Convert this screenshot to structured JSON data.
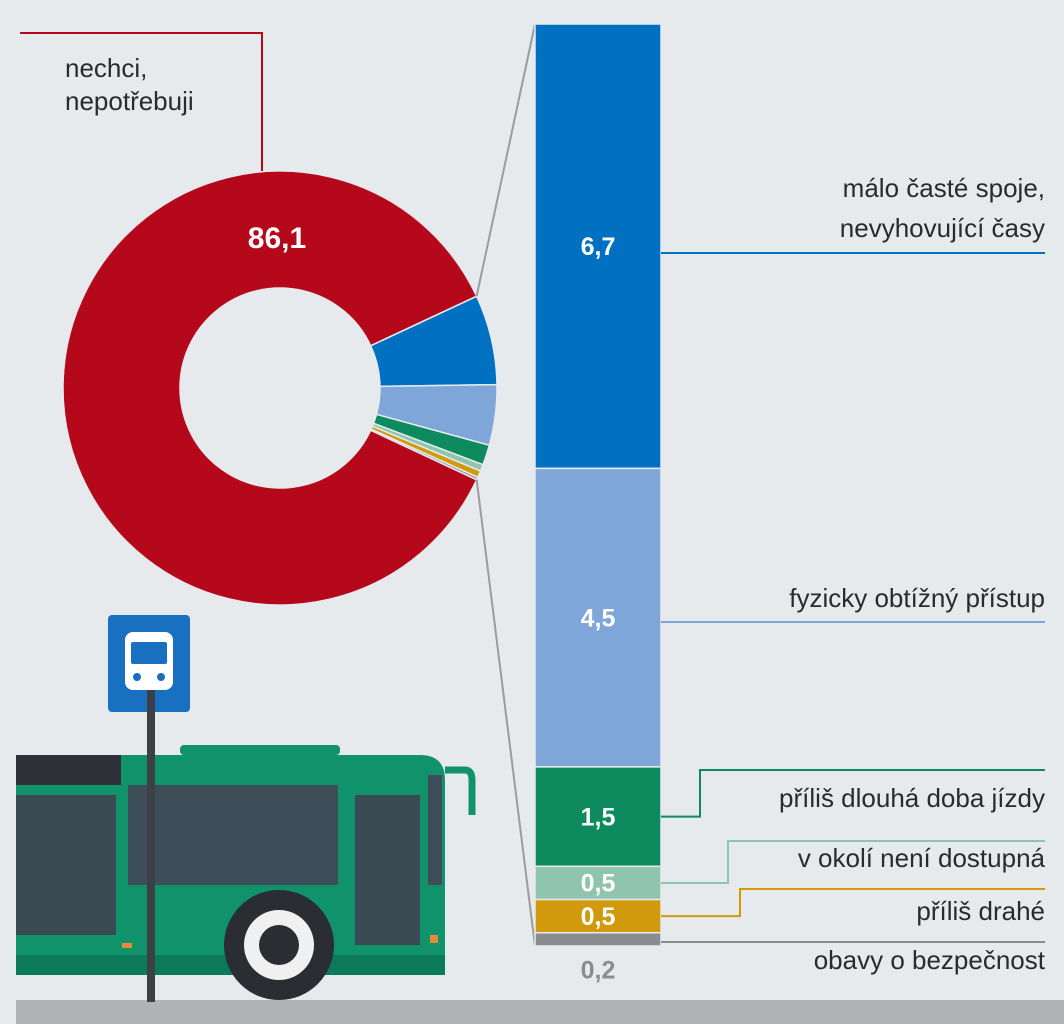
{
  "chart_data": {
    "type": "donut",
    "categories": [
      [
        "nechci,",
        "nepotřebuji"
      ],
      [
        "málo časté spoje,",
        "nevyhovující časy"
      ],
      [
        "fyzicky obtížný přístup"
      ],
      [
        "příliš dlouhá doba jízdy"
      ],
      [
        "v okolí není dostupná"
      ],
      [
        "příliš drahé"
      ],
      [
        "obavy o bezpečnost"
      ]
    ],
    "values": [
      86.1,
      6.7,
      4.5,
      1.5,
      0.5,
      0.5,
      0.2
    ],
    "value_labels": [
      "86,1",
      "6,7",
      "4,5",
      "1,5",
      "0,5",
      "0,5",
      "0,2"
    ],
    "colors": [
      "#b5081b",
      "#0070c0",
      "#7fa6d9",
      "#0e8a5f",
      "#8fc4ae",
      "#d19a0c",
      "#8a8c8f"
    ]
  }
}
